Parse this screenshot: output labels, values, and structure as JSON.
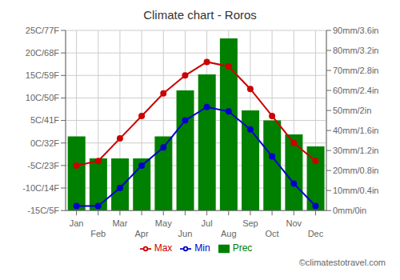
{
  "chart_data": {
    "type": "combo",
    "title": "Climate chart - Roros",
    "categories": [
      "Jan",
      "Feb",
      "Mar",
      "Apr",
      "May",
      "Jun",
      "Jul",
      "Aug",
      "Sep",
      "Oct",
      "Nov",
      "Dec"
    ],
    "series": [
      {
        "name": "Prec",
        "type": "bar",
        "axis": "y2",
        "color": "#008000",
        "values": [
          37,
          26,
          26,
          26,
          37,
          60,
          68,
          86,
          50,
          45,
          38,
          32
        ]
      },
      {
        "name": "Min",
        "type": "line",
        "axis": "y",
        "color": "#0000cc",
        "marker": "circle",
        "values": [
          -14,
          -14,
          -10,
          -5,
          -1,
          5,
          8,
          7,
          3,
          -3,
          -9,
          -14
        ]
      },
      {
        "name": "Max",
        "type": "line",
        "axis": "y",
        "color": "#cc0000",
        "marker": "circle",
        "values": [
          -5,
          -4,
          1,
          6,
          11,
          15,
          18,
          17,
          12,
          6,
          0,
          -4
        ]
      }
    ],
    "ylim": [
      -15,
      25
    ],
    "yticks": [
      {
        "value": -15,
        "label": "-15C/5F"
      },
      {
        "value": -10,
        "label": "-10C/14F"
      },
      {
        "value": -5,
        "label": "-5C/23F"
      },
      {
        "value": 0,
        "label": "0C/32F"
      },
      {
        "value": 5,
        "label": "5C/41F"
      },
      {
        "value": 10,
        "label": "10C/50F"
      },
      {
        "value": 15,
        "label": "15C/59F"
      },
      {
        "value": 20,
        "label": "20C/68F"
      },
      {
        "value": 25,
        "label": "25C/77F"
      }
    ],
    "y2lim": [
      0,
      90
    ],
    "y2ticks": [
      {
        "value": 0,
        "label": "0mm/0in"
      },
      {
        "value": 10,
        "label": "10mm/0.4in"
      },
      {
        "value": 20,
        "label": "20mm/0.8in"
      },
      {
        "value": 30,
        "label": "30mm/1.2in"
      },
      {
        "value": 40,
        "label": "40mm/1.6in"
      },
      {
        "value": 50,
        "label": "50mm/2in"
      },
      {
        "value": 60,
        "label": "60mm/2.4in"
      },
      {
        "value": 70,
        "label": "70mm/2.8in"
      },
      {
        "value": 80,
        "label": "80mm/3.2in"
      },
      {
        "value": 90,
        "label": "90mm/3.6in"
      }
    ],
    "grid": true,
    "legend": "bottom",
    "annotations": [
      "©climatestotravel.com"
    ]
  }
}
